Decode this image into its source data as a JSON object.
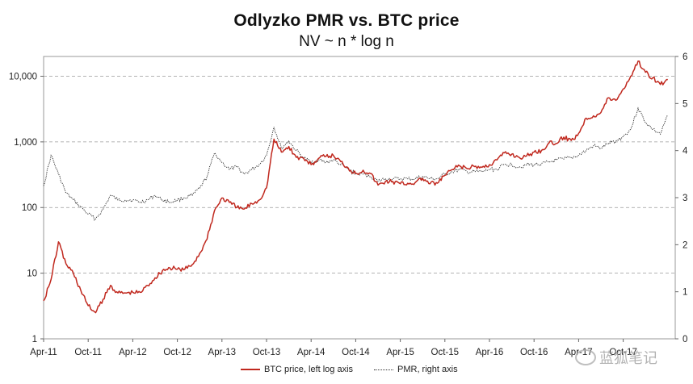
{
  "chart_data": {
    "type": "line",
    "title": "Odlyzko PMR vs. BTC price",
    "subtitle": "NV ~ n * log n",
    "x_tick_labels": [
      "Apr-11",
      "Oct-11",
      "Apr-12",
      "Oct-12",
      "Apr-13",
      "Oct-13",
      "Apr-14",
      "Oct-14",
      "Apr-15",
      "Oct-15",
      "Apr-16",
      "Oct-16",
      "Apr-17",
      "Oct-17"
    ],
    "left_axis": {
      "scale": "log",
      "range": [
        1,
        20000
      ],
      "tick_labels": [
        "1",
        "10",
        "100",
        "1,000",
        "10,000"
      ]
    },
    "right_axis": {
      "scale": "linear",
      "range": [
        0,
        6
      ],
      "tick_labels": [
        "0",
        "1",
        "2",
        "3",
        "4",
        "5",
        "6"
      ]
    },
    "grid": "horizontal dashed at left-axis decades",
    "legend_position": "bottom",
    "series": [
      {
        "name": "BTC price, left log axis",
        "axis": "left",
        "color": "#c0281e",
        "points": [
          [
            "Apr-11",
            3.8
          ],
          [
            "May-11",
            8
          ],
          [
            "Jun-11",
            30
          ],
          [
            "Jul-11",
            14
          ],
          [
            "Aug-11",
            10
          ],
          [
            "Sep-11",
            5.5
          ],
          [
            "Oct-11",
            3.2
          ],
          [
            "Nov-11",
            2.5
          ],
          [
            "Dec-11",
            4
          ],
          [
            "Jan-12",
            6.5
          ],
          [
            "Feb-12",
            5
          ],
          [
            "Mar-12",
            5
          ],
          [
            "Apr-12",
            5.1
          ],
          [
            "May-12",
            5.1
          ],
          [
            "Jun-12",
            6.5
          ],
          [
            "Jul-12",
            8.5
          ],
          [
            "Aug-12",
            11
          ],
          [
            "Sep-12",
            12
          ],
          [
            "Oct-12",
            11.5
          ],
          [
            "Nov-12",
            11.5
          ],
          [
            "Dec-12",
            13.5
          ],
          [
            "Jan-13",
            20
          ],
          [
            "Feb-13",
            33
          ],
          [
            "Mar-13",
            90
          ],
          [
            "Apr-13",
            140
          ],
          [
            "May-13",
            120
          ],
          [
            "Jun-13",
            100
          ],
          [
            "Jul-13",
            95
          ],
          [
            "Aug-13",
            115
          ],
          [
            "Sep-13",
            130
          ],
          [
            "Oct-13",
            200
          ],
          [
            "Nov-13",
            1100
          ],
          [
            "Dec-13",
            700
          ],
          [
            "Jan-14",
            850
          ],
          [
            "Feb-14",
            580
          ],
          [
            "Mar-14",
            560
          ],
          [
            "Apr-14",
            450
          ],
          [
            "May-14",
            560
          ],
          [
            "Jun-14",
            600
          ],
          [
            "Jul-14",
            620
          ],
          [
            "Aug-14",
            500
          ],
          [
            "Sep-14",
            400
          ],
          [
            "Oct-14",
            330
          ],
          [
            "Nov-14",
            370
          ],
          [
            "Dec-14",
            330
          ],
          [
            "Jan-15",
            220
          ],
          [
            "Feb-15",
            250
          ],
          [
            "Mar-15",
            250
          ],
          [
            "Apr-15",
            230
          ],
          [
            "May-15",
            235
          ],
          [
            "Jun-15",
            240
          ],
          [
            "Jul-15",
            280
          ],
          [
            "Aug-15",
            230
          ],
          [
            "Sep-15",
            235
          ],
          [
            "Oct-15",
            310
          ],
          [
            "Nov-15",
            380
          ],
          [
            "Dec-15",
            430
          ],
          [
            "Jan-16",
            390
          ],
          [
            "Feb-16",
            420
          ],
          [
            "Mar-16",
            410
          ],
          [
            "Apr-16",
            450
          ],
          [
            "May-16",
            530
          ],
          [
            "Jun-16",
            680
          ],
          [
            "Jul-16",
            650
          ],
          [
            "Aug-16",
            580
          ],
          [
            "Sep-16",
            610
          ],
          [
            "Oct-16",
            700
          ],
          [
            "Nov-16",
            740
          ],
          [
            "Dec-16",
            960
          ],
          [
            "Jan-17",
            950
          ],
          [
            "Feb-17",
            1180
          ],
          [
            "Mar-17",
            1050
          ],
          [
            "Apr-17",
            1350
          ],
          [
            "May-17",
            2300
          ],
          [
            "Jun-17",
            2500
          ],
          [
            "Jul-17",
            2800
          ],
          [
            "Aug-17",
            4700
          ],
          [
            "Sep-17",
            4300
          ],
          [
            "Oct-17",
            6400
          ],
          [
            "Nov-17",
            10000
          ],
          [
            "Dec-17",
            17000
          ],
          [
            "Jan-18",
            11500
          ],
          [
            "Feb-18",
            9500
          ],
          [
            "Mar-18",
            7500
          ],
          [
            "Apr-18",
            8900
          ]
        ]
      },
      {
        "name": "PMR, right axis",
        "axis": "right",
        "color": "#333333",
        "style": "dotted",
        "points": [
          [
            "Apr-11",
            3.25
          ],
          [
            "May-11",
            3.9
          ],
          [
            "Jun-11",
            3.5
          ],
          [
            "Jul-11",
            3.1
          ],
          [
            "Aug-11",
            2.95
          ],
          [
            "Sep-11",
            2.8
          ],
          [
            "Oct-11",
            2.65
          ],
          [
            "Nov-11",
            2.55
          ],
          [
            "Dec-11",
            2.75
          ],
          [
            "Jan-12",
            3.05
          ],
          [
            "Feb-12",
            2.95
          ],
          [
            "Mar-12",
            2.95
          ],
          [
            "Apr-12",
            2.95
          ],
          [
            "May-12",
            2.9
          ],
          [
            "Jun-12",
            2.95
          ],
          [
            "Jul-12",
            3.05
          ],
          [
            "Aug-12",
            2.95
          ],
          [
            "Sep-12",
            2.9
          ],
          [
            "Oct-12",
            2.95
          ],
          [
            "Nov-12",
            3.0
          ],
          [
            "Dec-12",
            3.05
          ],
          [
            "Jan-13",
            3.2
          ],
          [
            "Feb-13",
            3.45
          ],
          [
            "Mar-13",
            3.95
          ],
          [
            "Apr-13",
            3.75
          ],
          [
            "May-13",
            3.6
          ],
          [
            "Jun-13",
            3.65
          ],
          [
            "Jul-13",
            3.5
          ],
          [
            "Aug-13",
            3.6
          ],
          [
            "Sep-13",
            3.7
          ],
          [
            "Oct-13",
            3.9
          ],
          [
            "Nov-13",
            4.5
          ],
          [
            "Dec-13",
            4.05
          ],
          [
            "Jan-14",
            4.2
          ],
          [
            "Feb-14",
            4.0
          ],
          [
            "Mar-14",
            3.85
          ],
          [
            "Apr-14",
            3.75
          ],
          [
            "May-14",
            3.8
          ],
          [
            "Jun-14",
            3.75
          ],
          [
            "Jul-14",
            3.8
          ],
          [
            "Aug-14",
            3.7
          ],
          [
            "Sep-14",
            3.6
          ],
          [
            "Oct-14",
            3.5
          ],
          [
            "Nov-14",
            3.5
          ],
          [
            "Dec-14",
            3.45
          ],
          [
            "Jan-15",
            3.35
          ],
          [
            "Feb-15",
            3.4
          ],
          [
            "Mar-15",
            3.4
          ],
          [
            "Apr-15",
            3.4
          ],
          [
            "May-15",
            3.4
          ],
          [
            "Jun-15",
            3.4
          ],
          [
            "Jul-15",
            3.45
          ],
          [
            "Aug-15",
            3.4
          ],
          [
            "Sep-15",
            3.4
          ],
          [
            "Oct-15",
            3.5
          ],
          [
            "Nov-15",
            3.55
          ],
          [
            "Dec-15",
            3.6
          ],
          [
            "Jan-16",
            3.55
          ],
          [
            "Feb-16",
            3.55
          ],
          [
            "Mar-16",
            3.55
          ],
          [
            "Apr-16",
            3.6
          ],
          [
            "May-16",
            3.6
          ],
          [
            "Jun-16",
            3.7
          ],
          [
            "Jul-16",
            3.7
          ],
          [
            "Aug-16",
            3.65
          ],
          [
            "Sep-16",
            3.7
          ],
          [
            "Oct-16",
            3.7
          ],
          [
            "Nov-16",
            3.72
          ],
          [
            "Dec-16",
            3.75
          ],
          [
            "Jan-17",
            3.8
          ],
          [
            "Feb-17",
            3.82
          ],
          [
            "Mar-17",
            3.85
          ],
          [
            "Apr-17",
            3.9
          ],
          [
            "May-17",
            4.0
          ],
          [
            "Jun-17",
            4.1
          ],
          [
            "Jul-17",
            4.05
          ],
          [
            "Aug-17",
            4.15
          ],
          [
            "Sep-17",
            4.2
          ],
          [
            "Oct-17",
            4.3
          ],
          [
            "Nov-17",
            4.45
          ],
          [
            "Dec-17",
            4.9
          ],
          [
            "Jan-18",
            4.6
          ],
          [
            "Feb-18",
            4.45
          ],
          [
            "Mar-18",
            4.35
          ],
          [
            "Apr-18",
            4.75
          ]
        ]
      }
    ]
  },
  "watermark": {
    "text": "蓝狐笔记"
  }
}
